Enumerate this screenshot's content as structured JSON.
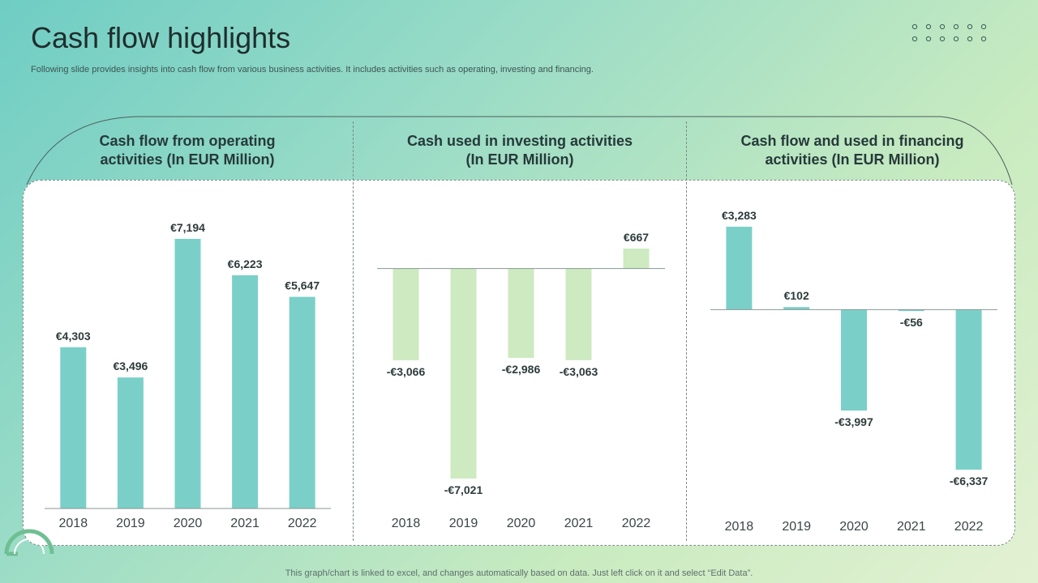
{
  "page": {
    "title": "Cash flow highlights",
    "subtitle": "Following slide provides insights into cash flow from various business activities. It includes activities such as operating, investing and financing.",
    "footer": "This graph/chart is linked to excel,  and changes automatically based on data. Just left click on it and select “Edit Data”."
  },
  "colors": {
    "teal": "#7ad0c8",
    "light_green": "#cdeac0",
    "axis": "#8a9694",
    "label": "#2d3b3b"
  },
  "chart_data": [
    {
      "type": "bar",
      "title": "Cash flow from operating activities (In EUR Million)",
      "title_lines": [
        "Cash flow from operating",
        "activities (In EUR Million)"
      ],
      "categories": [
        "2018",
        "2019",
        "2020",
        "2021",
        "2022"
      ],
      "values": [
        4303,
        3496,
        7194,
        6223,
        5647
      ],
      "labels": [
        "€4,303",
        "€3,496",
        "€7,194",
        "€6,223",
        "€5,647"
      ],
      "color": "#7ad0c8",
      "ylim": [
        0,
        7194
      ]
    },
    {
      "type": "bar",
      "title": "Cash used in investing activities (In EUR Million)",
      "title_lines": [
        "Cash used in investing activities",
        "(In EUR Million)"
      ],
      "categories": [
        "2018",
        "2019",
        "2020",
        "2021",
        "2022"
      ],
      "values": [
        -3066,
        -7021,
        -2986,
        -3063,
        667
      ],
      "labels": [
        "-€3,066",
        "-€7,021",
        "-€2,986",
        "-€3,063",
        "€667"
      ],
      "color": "#cdeac0",
      "ylim": [
        -7021,
        667
      ]
    },
    {
      "type": "bar",
      "title": "Cash flow and used in financing activities (In EUR Million)",
      "title_lines": [
        "Cash flow and used in financing",
        "activities (In EUR Million)"
      ],
      "categories": [
        "2018",
        "2019",
        "2020",
        "2021",
        "2022"
      ],
      "values": [
        3283,
        102,
        -3997,
        -56,
        -6337
      ],
      "labels": [
        "€3,283",
        "€102",
        "-€3,997",
        "-€56",
        "-€6,337"
      ],
      "color": "#7ad0c8",
      "ylim": [
        -6337,
        3283
      ]
    }
  ]
}
